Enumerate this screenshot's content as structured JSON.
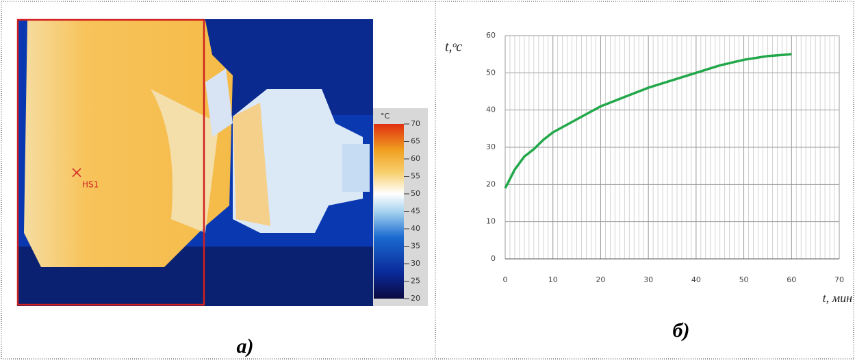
{
  "chart_data": [
    {
      "type": "image",
      "caption": "а)",
      "marker_label": "HS1",
      "colorbar_label": "°C",
      "colorbar_lim": [
        20,
        70
      ],
      "colorbar_ticks": [
        20,
        25,
        30,
        35,
        40,
        45,
        50,
        55,
        60,
        65,
        70
      ]
    },
    {
      "type": "line",
      "caption": "б)",
      "ylabel": "t,ᵒc",
      "xlabel": "t, мин",
      "x": [
        0,
        2,
        4,
        6,
        8,
        10,
        15,
        20,
        25,
        30,
        35,
        40,
        45,
        50,
        55,
        60
      ],
      "values": [
        19,
        24,
        27.5,
        29.5,
        32,
        34,
        37.5,
        41,
        43.5,
        46,
        48,
        50,
        52,
        53.5,
        54.5,
        55
      ],
      "color": "#22a84a",
      "xlim": [
        0,
        70
      ],
      "xticks": [
        0,
        10,
        20,
        30,
        40,
        50,
        60,
        70
      ],
      "ylim": [
        0,
        60
      ],
      "yticks": [
        0,
        10,
        20,
        30,
        40,
        50,
        60
      ],
      "grid": true
    }
  ]
}
